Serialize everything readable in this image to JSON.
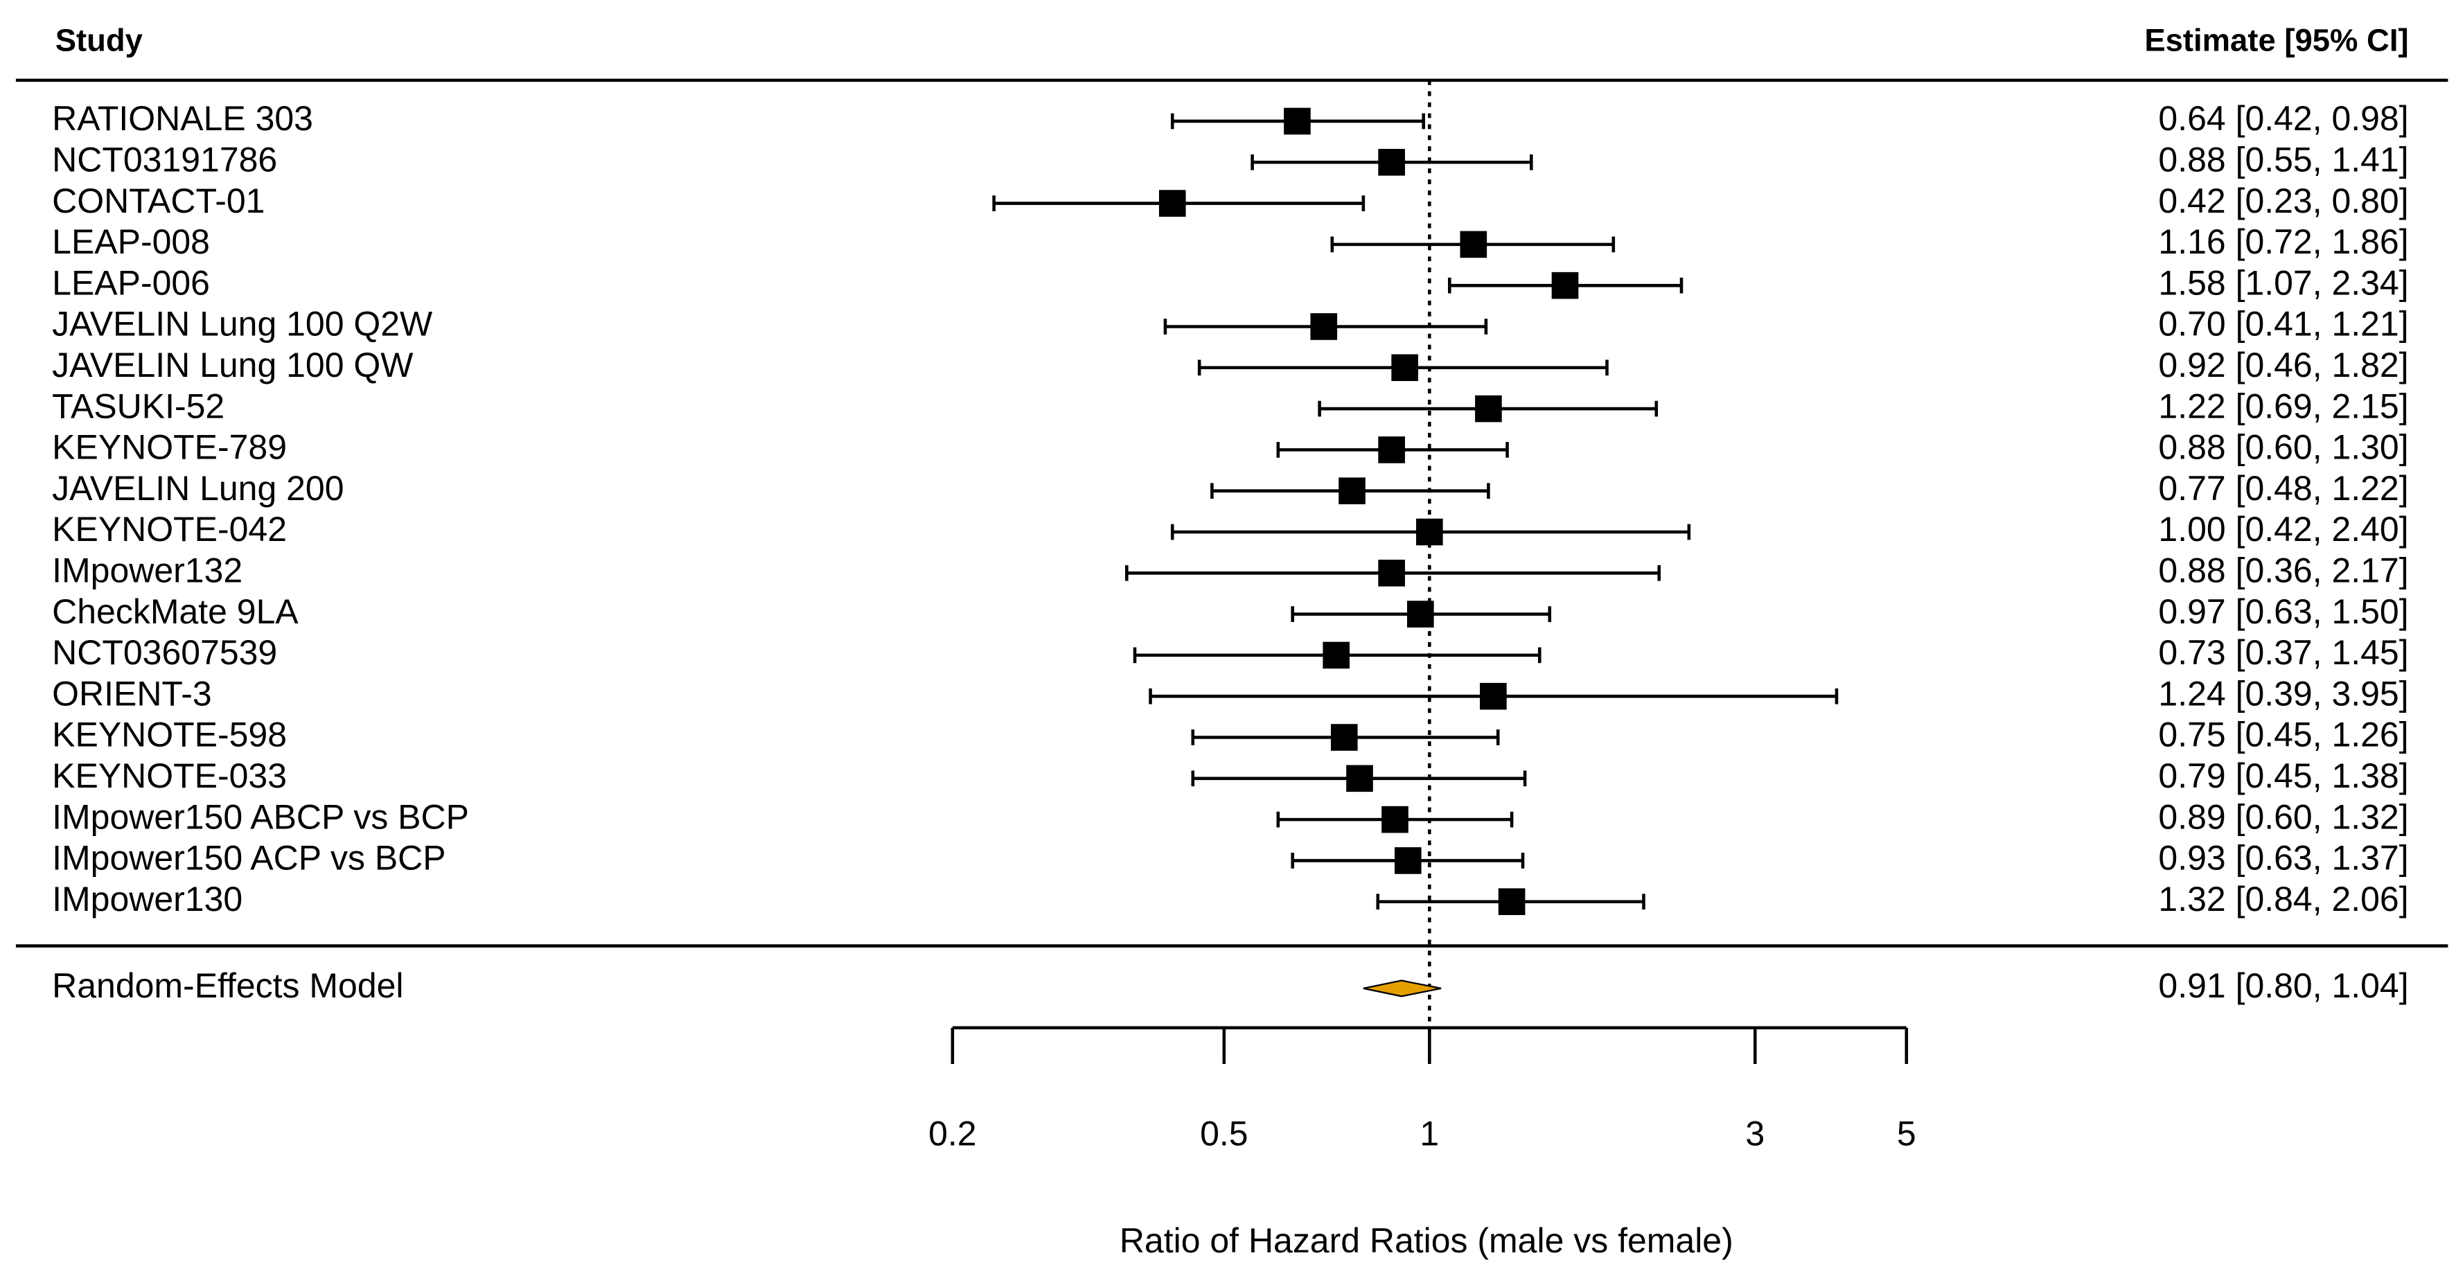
{
  "chart_data": {
    "type": "forest",
    "study_header": "Study",
    "estimate_header": "Estimate [95% CI]",
    "xlabel": "Ratio of Hazard Ratios (male vs female)",
    "xscale": "log",
    "xlim": [
      0.2,
      5
    ],
    "xticks": [
      0.2,
      0.5,
      1,
      3,
      5
    ],
    "reference": 1,
    "marker_color": "#000000",
    "summary_color": "#e69f00",
    "categories": [
      "RATIONALE 303",
      "NCT03191786",
      "CONTACT-01",
      "LEAP-008",
      "LEAP-006",
      "JAVELIN Lung 100 Q2W",
      "JAVELIN Lung 100 QW",
      "TASUKI-52",
      "KEYNOTE-789",
      "JAVELIN Lung 200",
      "KEYNOTE-042",
      "IMpower132",
      "CheckMate 9LA",
      "NCT03607539",
      "ORIENT-3",
      "KEYNOTE-598",
      "KEYNOTE-033",
      "IMpower150 ABCP vs BCP",
      "IMpower150 ACP vs BCP",
      "IMpower130"
    ],
    "values": [
      0.64,
      0.88,
      0.42,
      1.16,
      1.58,
      0.7,
      0.92,
      1.22,
      0.88,
      0.77,
      1.0,
      0.88,
      0.97,
      0.73,
      1.24,
      0.75,
      0.79,
      0.89,
      0.93,
      1.32
    ],
    "lower": [
      0.42,
      0.55,
      0.23,
      0.72,
      1.07,
      0.41,
      0.46,
      0.69,
      0.6,
      0.48,
      0.42,
      0.36,
      0.63,
      0.37,
      0.39,
      0.45,
      0.45,
      0.6,
      0.63,
      0.84
    ],
    "upper": [
      0.98,
      1.41,
      0.8,
      1.86,
      2.34,
      1.21,
      1.82,
      2.15,
      1.3,
      1.22,
      2.4,
      2.17,
      1.5,
      1.45,
      3.95,
      1.26,
      1.38,
      1.32,
      1.37,
      2.06
    ],
    "value_labels": [
      "0.64 [0.42, 0.98]",
      "0.88 [0.55, 1.41]",
      "0.42 [0.23, 0.80]",
      "1.16 [0.72, 1.86]",
      "1.58 [1.07, 2.34]",
      "0.70 [0.41, 1.21]",
      "0.92 [0.46, 1.82]",
      "1.22 [0.69, 2.15]",
      "0.88 [0.60, 1.30]",
      "0.77 [0.48, 1.22]",
      "1.00 [0.42, 2.40]",
      "0.88 [0.36, 2.17]",
      "0.97 [0.63, 1.50]",
      "0.73 [0.37, 1.45]",
      "1.24 [0.39, 3.95]",
      "0.75 [0.45, 1.26]",
      "0.79 [0.45, 1.38]",
      "0.89 [0.60, 1.32]",
      "0.93 [0.63, 1.37]",
      "1.32 [0.84, 2.06]"
    ],
    "summary": {
      "name": "Random-Effects Model",
      "value": 0.91,
      "lower": 0.8,
      "upper": 1.04,
      "value_label": "0.91 [0.80, 1.04]"
    }
  }
}
